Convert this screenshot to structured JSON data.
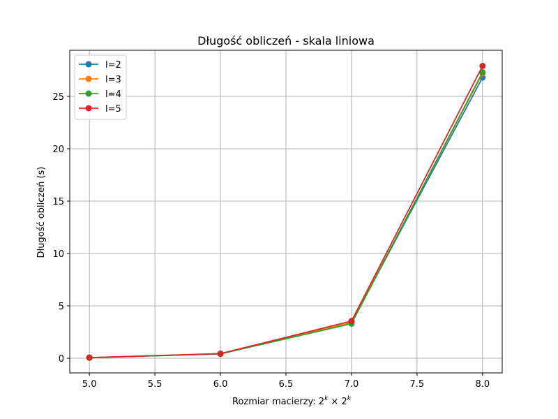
{
  "chart_data": {
    "type": "line",
    "title": "Długość obliczeń - skala liniowa",
    "xlabel": "Rozmiar macierzy: ",
    "xlabel_math": "2^k × 2^k",
    "ylabel": "Długość obliczeń (s)",
    "x": [
      5.0,
      6.0,
      7.0,
      8.0
    ],
    "xlim": [
      4.85,
      8.15
    ],
    "ylim": [
      -1.4,
      29.4
    ],
    "xticks": [
      5.0,
      5.5,
      6.0,
      6.5,
      7.0,
      7.5,
      8.0
    ],
    "xtick_labels": [
      "5.0",
      "5.5",
      "6.0",
      "6.5",
      "7.0",
      "7.5",
      "8.0"
    ],
    "yticks": [
      0,
      5,
      10,
      15,
      20,
      25
    ],
    "ytick_labels": [
      "0",
      "5",
      "10",
      "15",
      "20",
      "25"
    ],
    "grid": true,
    "legend_position": "top-left",
    "series": [
      {
        "name": "l=2",
        "color": "#1f77b4",
        "values": [
          0.05,
          0.42,
          3.4,
          26.8
        ]
      },
      {
        "name": "l=3",
        "color": "#ff7f0e",
        "values": [
          0.05,
          0.43,
          3.4,
          27.2
        ]
      },
      {
        "name": "l=4",
        "color": "#2ca02c",
        "values": [
          0.05,
          0.42,
          3.3,
          27.3
        ]
      },
      {
        "name": "l=5",
        "color": "#d62728",
        "values": [
          0.06,
          0.44,
          3.55,
          27.9
        ]
      }
    ]
  }
}
